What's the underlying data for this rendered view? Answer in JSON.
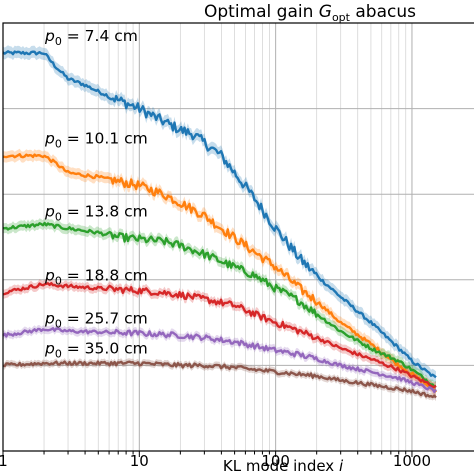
{
  "chart_data": {
    "type": "line",
    "title_main": "Optimal gain ",
    "title_symbol": "G",
    "title_sub": "opt",
    "title_tail": " abacus",
    "xlabel_main": "KL mode index ",
    "xlabel_symbol": "i",
    "xscale": "log",
    "xlim": [
      1,
      1500
    ],
    "x_ticks": [
      {
        "value": 1,
        "label": "1"
      },
      {
        "value": 10,
        "label": "10"
      },
      {
        "value": 100,
        "label": "100"
      },
      {
        "value": 1000,
        "label": "1000"
      }
    ],
    "grid": true,
    "band": "shaded uncertainty band around each line",
    "series": [
      {
        "name": "p0 = 7.4 cm",
        "label_symbol": "p",
        "label_sub": "0",
        "label_value": " = 7.4 cm",
        "color": "#1f77b4",
        "level": 0.93,
        "points": [
          [
            1,
            0.93
          ],
          [
            2,
            0.93
          ],
          [
            2.4,
            0.9
          ],
          [
            3,
            0.87
          ],
          [
            4,
            0.855
          ],
          [
            5,
            0.84
          ],
          [
            7,
            0.82
          ],
          [
            10,
            0.8
          ],
          [
            14,
            0.775
          ],
          [
            20,
            0.75
          ],
          [
            25,
            0.74
          ],
          [
            30,
            0.72
          ],
          [
            40,
            0.69
          ],
          [
            50,
            0.65
          ],
          [
            70,
            0.59
          ],
          [
            100,
            0.52
          ],
          [
            150,
            0.45
          ],
          [
            200,
            0.41
          ],
          [
            300,
            0.36
          ],
          [
            500,
            0.3
          ],
          [
            800,
            0.24
          ],
          [
            1000,
            0.21
          ],
          [
            1500,
            0.17
          ]
        ]
      },
      {
        "name": "p0 = 10.1 cm",
        "label_symbol": "p",
        "label_sub": "0",
        "label_value": " = 10.1 cm",
        "color": "#ff7f0e",
        "level": 0.69,
        "points": [
          [
            1,
            0.69
          ],
          [
            2,
            0.69
          ],
          [
            2.5,
            0.67
          ],
          [
            3,
            0.65
          ],
          [
            5,
            0.64
          ],
          [
            7,
            0.63
          ],
          [
            10,
            0.62
          ],
          [
            15,
            0.6
          ],
          [
            20,
            0.58
          ],
          [
            30,
            0.55
          ],
          [
            40,
            0.52
          ],
          [
            60,
            0.48
          ],
          [
            100,
            0.43
          ],
          [
            150,
            0.38
          ],
          [
            200,
            0.35
          ],
          [
            300,
            0.3
          ],
          [
            500,
            0.25
          ],
          [
            800,
            0.2
          ],
          [
            1000,
            0.18
          ],
          [
            1500,
            0.14
          ]
        ]
      },
      {
        "name": "p0 = 13.8 cm",
        "label_symbol": "p",
        "label_sub": "0",
        "label_value": " = 13.8 cm",
        "color": "#2ca02c",
        "level": 0.52,
        "points": [
          [
            1,
            0.52
          ],
          [
            2,
            0.53
          ],
          [
            3,
            0.52
          ],
          [
            5,
            0.51
          ],
          [
            7,
            0.5
          ],
          [
            10,
            0.495
          ],
          [
            15,
            0.49
          ],
          [
            20,
            0.48
          ],
          [
            30,
            0.46
          ],
          [
            50,
            0.43
          ],
          [
            70,
            0.41
          ],
          [
            100,
            0.38
          ],
          [
            150,
            0.35
          ],
          [
            200,
            0.32
          ],
          [
            300,
            0.28
          ],
          [
            500,
            0.24
          ],
          [
            800,
            0.21
          ],
          [
            1000,
            0.19
          ],
          [
            1500,
            0.15
          ]
        ]
      },
      {
        "name": "p0 = 18.8 cm",
        "label_symbol": "p",
        "label_sub": "0",
        "label_value": " = 18.8 cm",
        "color": "#d62728",
        "level": 0.37,
        "points": [
          [
            1,
            0.37
          ],
          [
            2,
            0.39
          ],
          [
            3,
            0.385
          ],
          [
            5,
            0.38
          ],
          [
            10,
            0.375
          ],
          [
            15,
            0.37
          ],
          [
            20,
            0.365
          ],
          [
            30,
            0.355
          ],
          [
            50,
            0.34
          ],
          [
            70,
            0.32
          ],
          [
            100,
            0.3
          ],
          [
            150,
            0.28
          ],
          [
            200,
            0.265
          ],
          [
            300,
            0.24
          ],
          [
            500,
            0.215
          ],
          [
            800,
            0.19
          ],
          [
            1000,
            0.175
          ],
          [
            1500,
            0.15
          ]
        ]
      },
      {
        "name": "p0 = 25.7 cm",
        "label_symbol": "p",
        "label_sub": "0",
        "label_value": " = 25.7 cm",
        "color": "#9467bd",
        "level": 0.27,
        "points": [
          [
            1,
            0.27
          ],
          [
            2,
            0.285
          ],
          [
            3,
            0.28
          ],
          [
            5,
            0.278
          ],
          [
            10,
            0.275
          ],
          [
            20,
            0.27
          ],
          [
            30,
            0.265
          ],
          [
            50,
            0.255
          ],
          [
            100,
            0.235
          ],
          [
            150,
            0.225
          ],
          [
            200,
            0.215
          ],
          [
            300,
            0.2
          ],
          [
            500,
            0.185
          ],
          [
            800,
            0.17
          ],
          [
            1000,
            0.16
          ],
          [
            1500,
            0.14
          ]
        ]
      },
      {
        "name": "p0 = 35.0 cm",
        "label_symbol": "p",
        "label_sub": "0",
        "label_value": " = 35.0 cm",
        "color": "#8c564b",
        "level": 0.2,
        "points": [
          [
            1,
            0.2
          ],
          [
            2,
            0.205
          ],
          [
            3,
            0.205
          ],
          [
            5,
            0.205
          ],
          [
            10,
            0.205
          ],
          [
            20,
            0.2
          ],
          [
            30,
            0.2
          ],
          [
            50,
            0.195
          ],
          [
            100,
            0.185
          ],
          [
            200,
            0.175
          ],
          [
            300,
            0.165
          ],
          [
            500,
            0.155
          ],
          [
            800,
            0.145
          ],
          [
            1000,
            0.14
          ],
          [
            1500,
            0.125
          ]
        ]
      }
    ]
  }
}
